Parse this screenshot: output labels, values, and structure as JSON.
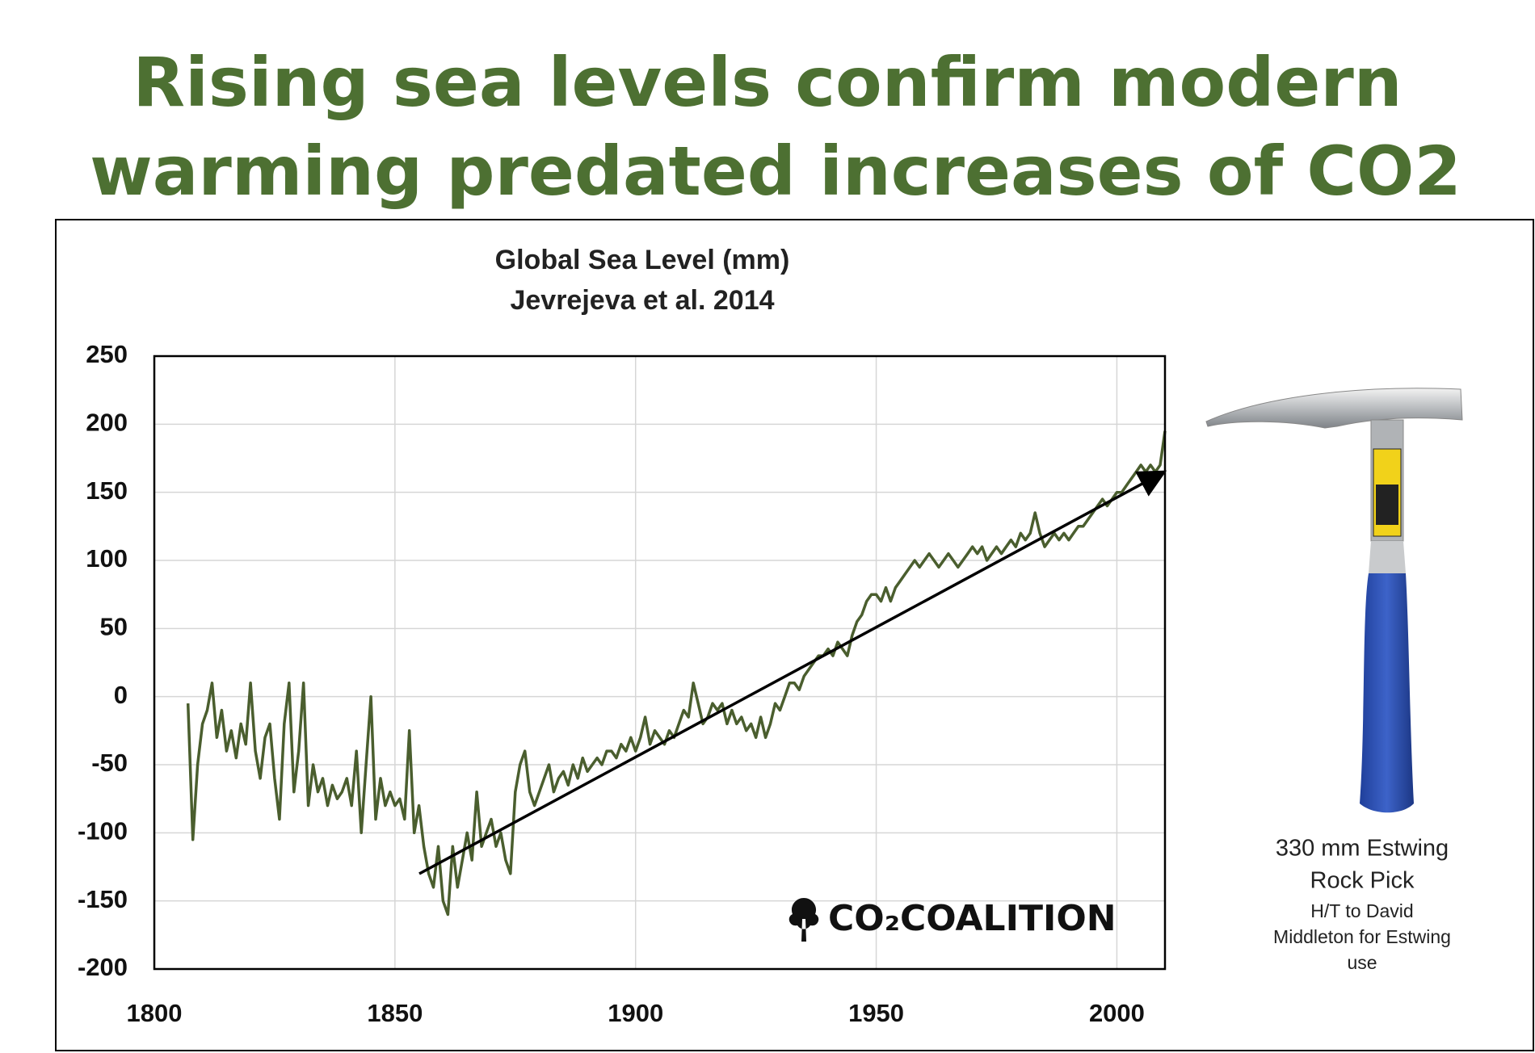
{
  "chart_data": {
    "type": "line",
    "headline": [
      "Rising sea levels confirm modern",
      "warming predated increases of CO2"
    ],
    "title": [
      "Global Sea Level (mm)",
      "Jevrejeva et al. 2014"
    ],
    "logo": "CO₂COALITION",
    "caption": [
      "330 mm Estwing",
      "Rock Pick",
      "H/T to David",
      "Middleton for Estwing",
      "use"
    ],
    "color": "#4a5e2e",
    "grid": true,
    "xlim": [
      1800,
      2010
    ],
    "ylim": [
      -200,
      250
    ],
    "xticks": [
      1800,
      1850,
      1900,
      1950,
      2000
    ],
    "yticks": [
      -200,
      -150,
      -100,
      -50,
      0,
      50,
      100,
      150,
      200,
      250
    ],
    "x": [
      1807,
      1808,
      1809,
      1810,
      1811,
      1812,
      1813,
      1814,
      1815,
      1816,
      1817,
      1818,
      1819,
      1820,
      1821,
      1822,
      1823,
      1824,
      1825,
      1826,
      1827,
      1828,
      1829,
      1830,
      1831,
      1832,
      1833,
      1834,
      1835,
      1836,
      1837,
      1838,
      1839,
      1840,
      1841,
      1842,
      1843,
      1844,
      1845,
      1846,
      1847,
      1848,
      1849,
      1850,
      1851,
      1852,
      1853,
      1854,
      1855,
      1856,
      1857,
      1858,
      1859,
      1860,
      1861,
      1862,
      1863,
      1864,
      1865,
      1866,
      1867,
      1868,
      1869,
      1870,
      1871,
      1872,
      1873,
      1874,
      1875,
      1876,
      1877,
      1878,
      1879,
      1880,
      1881,
      1882,
      1883,
      1884,
      1885,
      1886,
      1887,
      1888,
      1889,
      1890,
      1891,
      1892,
      1893,
      1894,
      1895,
      1896,
      1897,
      1898,
      1899,
      1900,
      1901,
      1902,
      1903,
      1904,
      1905,
      1906,
      1907,
      1908,
      1909,
      1910,
      1911,
      1912,
      1913,
      1914,
      1915,
      1916,
      1917,
      1918,
      1919,
      1920,
      1921,
      1922,
      1923,
      1924,
      1925,
      1926,
      1927,
      1928,
      1929,
      1930,
      1931,
      1932,
      1933,
      1934,
      1935,
      1936,
      1937,
      1938,
      1939,
      1940,
      1941,
      1942,
      1943,
      1944,
      1945,
      1946,
      1947,
      1948,
      1949,
      1950,
      1951,
      1952,
      1953,
      1954,
      1955,
      1956,
      1957,
      1958,
      1959,
      1960,
      1961,
      1962,
      1963,
      1964,
      1965,
      1966,
      1967,
      1968,
      1969,
      1970,
      1971,
      1972,
      1973,
      1974,
      1975,
      1976,
      1977,
      1978,
      1979,
      1980,
      1981,
      1982,
      1983,
      1984,
      1985,
      1986,
      1987,
      1988,
      1989,
      1990,
      1991,
      1992,
      1993,
      1994,
      1995,
      1996,
      1997,
      1998,
      1999,
      2000,
      2001,
      2002,
      2003,
      2004,
      2005,
      2006,
      2007,
      2008,
      2009,
      2010
    ],
    "values": [
      -5,
      -105,
      -50,
      -20,
      -10,
      10,
      -30,
      -10,
      -40,
      -25,
      -45,
      -20,
      -35,
      10,
      -40,
      -60,
      -30,
      -20,
      -60,
      -90,
      -20,
      10,
      -70,
      -40,
      10,
      -80,
      -50,
      -70,
      -60,
      -80,
      -65,
      -75,
      -70,
      -60,
      -80,
      -40,
      -100,
      -50,
      0,
      -90,
      -60,
      -80,
      -70,
      -80,
      -75,
      -90,
      -25,
      -100,
      -80,
      -110,
      -130,
      -140,
      -110,
      -150,
      -160,
      -110,
      -140,
      -120,
      -100,
      -120,
      -70,
      -110,
      -100,
      -90,
      -110,
      -100,
      -120,
      -130,
      -70,
      -50,
      -40,
      -70,
      -80,
      -70,
      -60,
      -50,
      -70,
      -60,
      -55,
      -65,
      -50,
      -60,
      -45,
      -55,
      -50,
      -45,
      -50,
      -40,
      -40,
      -45,
      -35,
      -40,
      -30,
      -40,
      -30,
      -15,
      -35,
      -25,
      -30,
      -35,
      -25,
      -30,
      -20,
      -10,
      -15,
      10,
      -5,
      -20,
      -15,
      -5,
      -10,
      -5,
      -20,
      -10,
      -20,
      -15,
      -25,
      -20,
      -30,
      -15,
      -30,
      -20,
      -5,
      -10,
      0,
      10,
      10,
      5,
      15,
      20,
      25,
      30,
      30,
      35,
      30,
      40,
      35,
      30,
      45,
      55,
      60,
      70,
      75,
      75,
      70,
      80,
      70,
      80,
      85,
      90,
      95,
      100,
      95,
      100,
      105,
      100,
      95,
      100,
      105,
      100,
      95,
      100,
      105,
      110,
      105,
      110,
      100,
      105,
      110,
      105,
      110,
      115,
      110,
      120,
      115,
      120,
      135,
      120,
      110,
      115,
      120,
      115,
      120,
      115,
      120,
      125,
      125,
      130,
      135,
      140,
      145,
      140,
      145,
      150,
      150,
      155,
      160,
      165,
      170,
      165,
      170,
      165,
      170,
      195
    ]
  }
}
